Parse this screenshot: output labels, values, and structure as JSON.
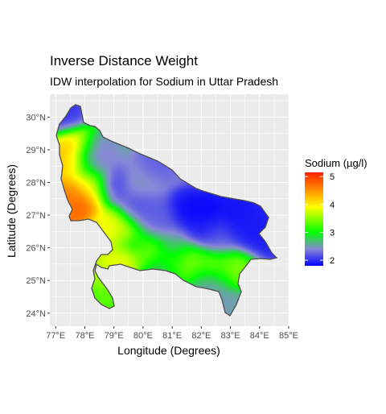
{
  "title": "Inverse Distance Weight",
  "subtitle": "IDW interpolation for Sodium in Uttar Pradesh",
  "chart_data": {
    "type": "heatmap",
    "xlabel": "Longitude (Degrees)",
    "ylabel": "Latitude (Degrees)",
    "xlim": [
      76.8,
      85.0
    ],
    "ylim": [
      23.6,
      30.7
    ],
    "x_ticks": [
      {
        "value": 77,
        "label": "77°E"
      },
      {
        "value": 78,
        "label": "78°E"
      },
      {
        "value": 79,
        "label": "79°E"
      },
      {
        "value": 80,
        "label": "80°E"
      },
      {
        "value": 81,
        "label": "81°E"
      },
      {
        "value": 82,
        "label": "82°E"
      },
      {
        "value": 83,
        "label": "83°E"
      },
      {
        "value": 84,
        "label": "84°E"
      },
      {
        "value": 85,
        "label": "85°E"
      }
    ],
    "y_ticks": [
      {
        "value": 24,
        "label": "24°N"
      },
      {
        "value": 25,
        "label": "25°N"
      },
      {
        "value": 26,
        "label": "26°N"
      },
      {
        "value": 27,
        "label": "27°N"
      },
      {
        "value": 28,
        "label": "28°N"
      },
      {
        "value": 29,
        "label": "29°N"
      },
      {
        "value": 30,
        "label": "30°N"
      }
    ],
    "grid": true,
    "legend": {
      "title": "Sodium (µg/l)",
      "placement": "right",
      "ticks": [
        {
          "value": 5,
          "label": "5"
        },
        {
          "value": 4,
          "label": "4"
        },
        {
          "value": 3,
          "label": "3"
        },
        {
          "value": 2,
          "label": "2"
        }
      ],
      "range": [
        1.8,
        5.15
      ],
      "colors": [
        "#0000ff",
        "#8888d8",
        "#00ff00",
        "#ffff00",
        "#ff8000",
        "#ff2000"
      ]
    },
    "background_value": 2.65,
    "hotspots": [
      {
        "lon": 77.8,
        "lat": 27.35,
        "value": 4.9
      },
      {
        "lon": 77.35,
        "lat": 27.5,
        "value": 4.6
      },
      {
        "lon": 77.6,
        "lat": 29.05,
        "value": 4.4
      },
      {
        "lon": 77.55,
        "lat": 28.65,
        "value": 4.3
      },
      {
        "lon": 78.2,
        "lat": 27.9,
        "value": 3.9
      },
      {
        "lon": 79.4,
        "lat": 25.75,
        "value": 4.3
      },
      {
        "lon": 79.4,
        "lat": 26.45,
        "value": 4.1
      },
      {
        "lon": 78.8,
        "lat": 26.6,
        "value": 3.9
      },
      {
        "lon": 80.2,
        "lat": 25.9,
        "value": 3.6
      },
      {
        "lon": 79.0,
        "lat": 25.3,
        "value": 3.7
      },
      {
        "lon": 81.6,
        "lat": 25.6,
        "value": 3.5
      },
      {
        "lon": 82.4,
        "lat": 25.4,
        "value": 3.6
      },
      {
        "lon": 83.3,
        "lat": 25.4,
        "value": 3.5
      },
      {
        "lon": 80.9,
        "lat": 25.6,
        "value": 3.3
      },
      {
        "lon": 78.9,
        "lat": 24.4,
        "value": 3.3
      },
      {
        "lon": 78.1,
        "lat": 28.8,
        "value": 2.1
      },
      {
        "lon": 78.5,
        "lat": 28.8,
        "value": 2.4
      },
      {
        "lon": 78.95,
        "lat": 27.95,
        "value": 2.0
      },
      {
        "lon": 77.3,
        "lat": 30.05,
        "value": 2.0
      },
      {
        "lon": 79.8,
        "lat": 27.25,
        "value": 2.1
      },
      {
        "lon": 80.6,
        "lat": 26.8,
        "value": 2.2
      },
      {
        "lon": 80.1,
        "lat": 26.95,
        "value": 2.2
      },
      {
        "lon": 81.45,
        "lat": 27.1,
        "value": 1.8
      },
      {
        "lon": 82.2,
        "lat": 27.1,
        "value": 1.8
      },
      {
        "lon": 82.0,
        "lat": 26.55,
        "value": 1.9
      },
      {
        "lon": 83.1,
        "lat": 27.0,
        "value": 1.85
      },
      {
        "lon": 83.6,
        "lat": 26.5,
        "value": 1.9
      },
      {
        "lon": 84.0,
        "lat": 26.25,
        "value": 1.9
      },
      {
        "lon": 83.5,
        "lat": 26.9,
        "value": 1.9
      },
      {
        "lon": 82.6,
        "lat": 26.3,
        "value": 2.2
      },
      {
        "lon": 80.35,
        "lat": 28.5,
        "value": 2.2
      },
      {
        "lon": 79.6,
        "lat": 26.1,
        "value": 2.3
      },
      {
        "lon": 80.5,
        "lat": 25.3,
        "value": 2.4
      },
      {
        "lon": 81.0,
        "lat": 26.1,
        "value": 2.5
      },
      {
        "lon": 82.3,
        "lat": 25.0,
        "value": 2.3
      },
      {
        "lon": 83.0,
        "lat": 24.2,
        "value": 2.5
      },
      {
        "lon": 79.9,
        "lat": 28.0,
        "value": 2.5
      }
    ]
  }
}
